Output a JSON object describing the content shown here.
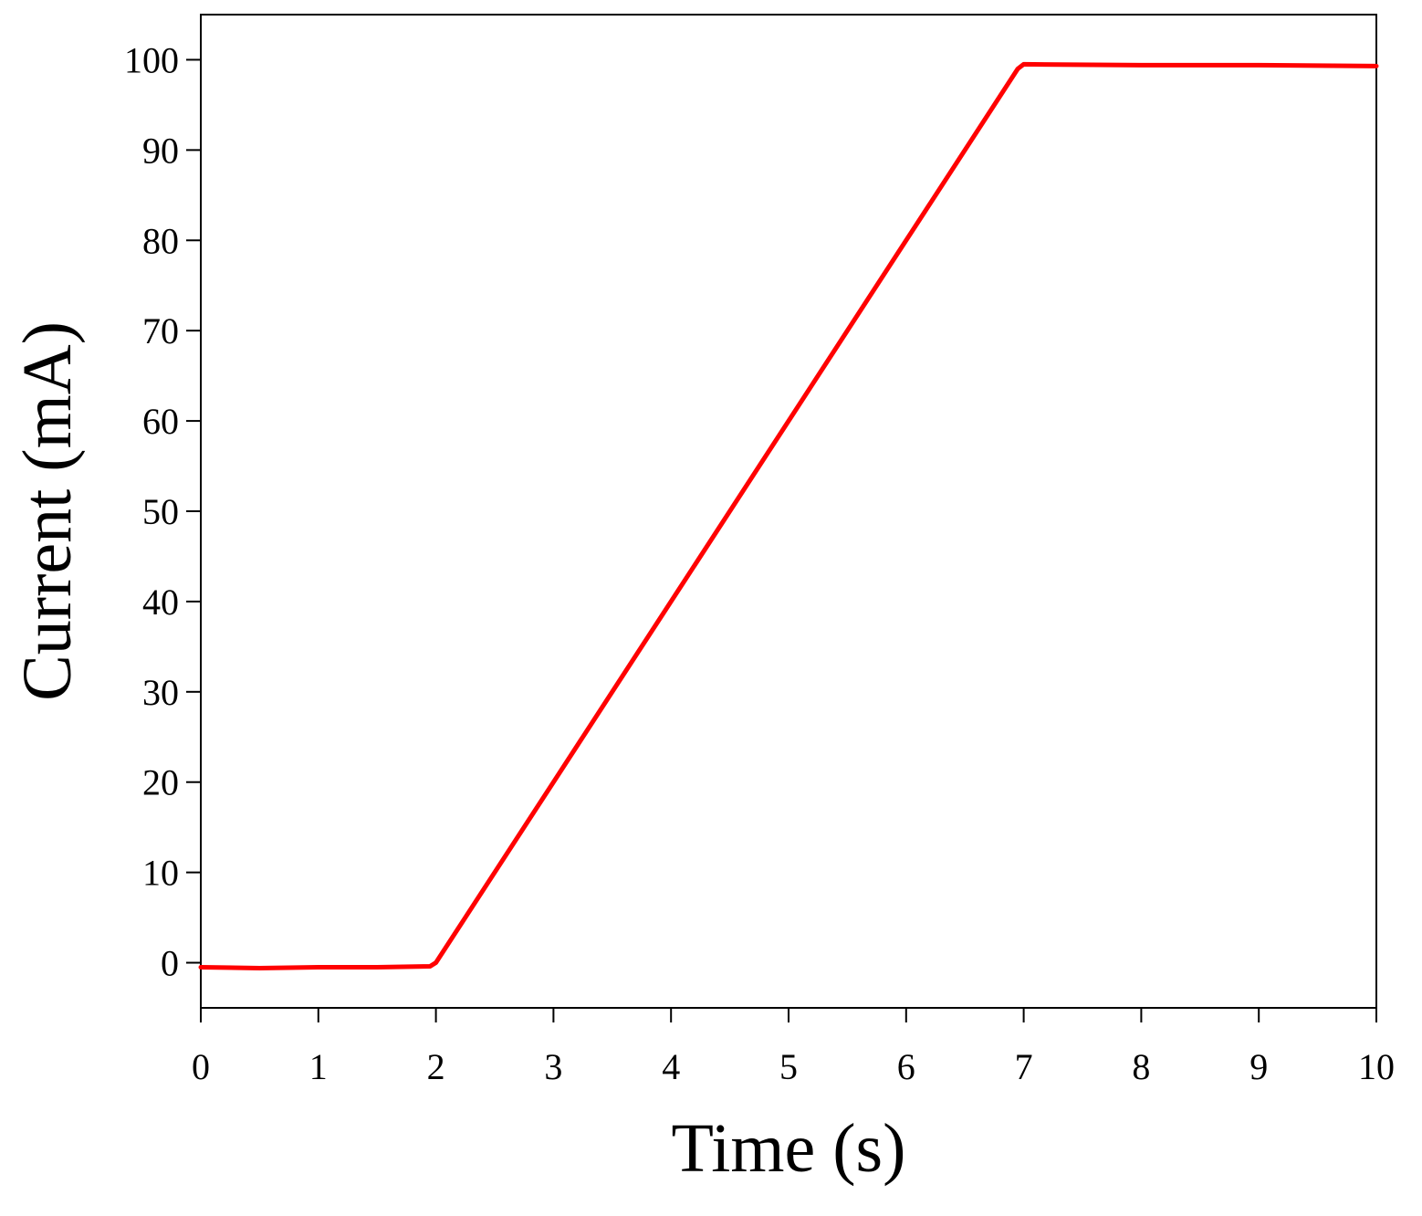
{
  "chart_data": {
    "type": "line",
    "title": "",
    "xlabel": "Time (s)",
    "ylabel": "Current (mA)",
    "xlim": [
      0,
      10
    ],
    "ylim": [
      -5,
      105
    ],
    "xticks": [
      0,
      1,
      2,
      3,
      4,
      5,
      6,
      7,
      8,
      9,
      10
    ],
    "yticks": [
      0,
      10,
      20,
      30,
      40,
      50,
      60,
      70,
      80,
      90,
      100
    ],
    "grid": false,
    "legend": "none",
    "series": [
      {
        "color": "#ff0000",
        "x": [
          0,
          0.5,
          1,
          1.5,
          1.95,
          2.0,
          3,
          4,
          5,
          6,
          6.95,
          7.0,
          8,
          9,
          10
        ],
        "y": [
          -0.5,
          -0.6,
          -0.5,
          -0.5,
          -0.4,
          0,
          20,
          40,
          60,
          80,
          99,
          99.5,
          99.4,
          99.4,
          99.3
        ]
      }
    ]
  }
}
